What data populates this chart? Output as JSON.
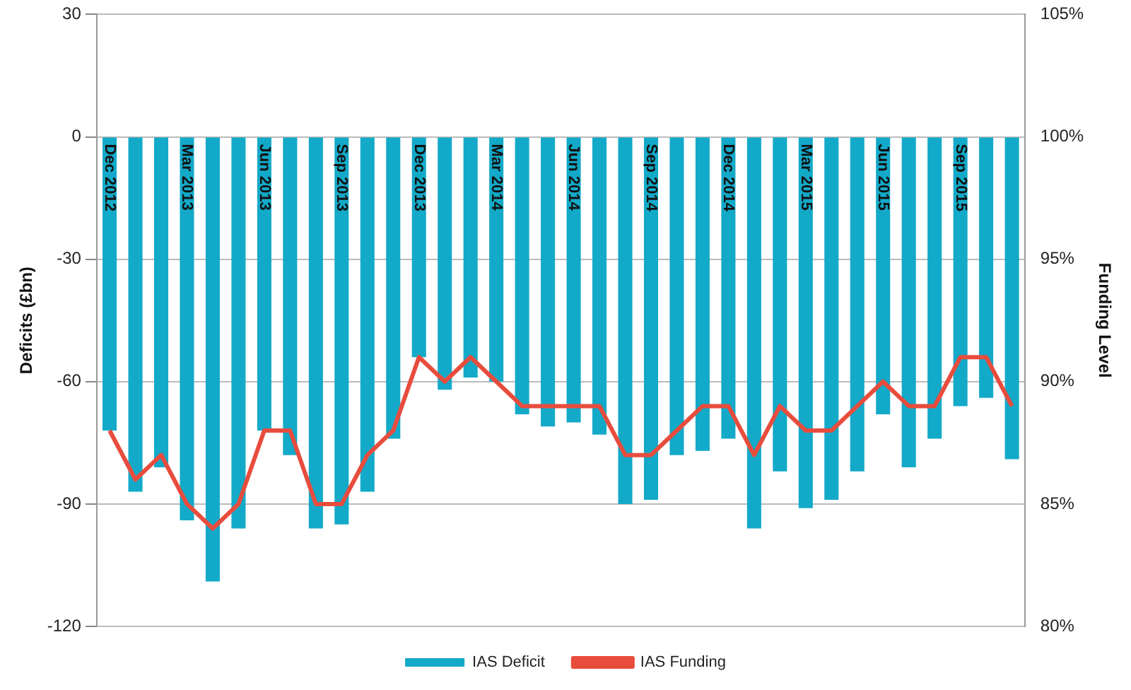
{
  "chart_data": {
    "type": "bar",
    "ylabel": "Deficits (£bn)",
    "y2label": "Funding Level",
    "categories": [
      "Dec 2012",
      null,
      null,
      "Mar 2013",
      null,
      null,
      "Jun 2013",
      null,
      null,
      "Sep 2013",
      null,
      null,
      "Dec 2013",
      null,
      null,
      "Mar 2014",
      null,
      null,
      "Jun 2014",
      null,
      null,
      "Sep 2014",
      null,
      null,
      "Dec 2014",
      null,
      null,
      "Mar 2015",
      null,
      null,
      "Jun 2015",
      null,
      null,
      "Sep 2015",
      null,
      null
    ],
    "series": [
      {
        "name": "IAS Deficit",
        "color": "#13a9c8",
        "values": [
          -72,
          -87,
          -81,
          -94,
          -109,
          -96,
          -72,
          -78,
          -96,
          -95,
          -87,
          -74,
          -54,
          -62,
          -59,
          -60,
          -68,
          -71,
          -70,
          -73,
          -90,
          -89,
          -78,
          -77,
          -74,
          -96,
          -82,
          -91,
          -89,
          -82,
          -68,
          -81,
          -74,
          -66,
          -64,
          -79
        ]
      },
      {
        "name": "IAS Funding",
        "type": "line",
        "axis": "y2",
        "color": "#e84c3d",
        "values": [
          88,
          86,
          87,
          85,
          84,
          85,
          88,
          88,
          85,
          85,
          87,
          88,
          91,
          90,
          91,
          90,
          89,
          89,
          89,
          89,
          87,
          87,
          88,
          89,
          89,
          87,
          89,
          88,
          88,
          89,
          90,
          89,
          89,
          91,
          91,
          89
        ]
      }
    ],
    "ylim": [
      -120,
      30
    ],
    "yticks": [
      -120,
      -90,
      -60,
      -30,
      0,
      30
    ],
    "y2lim": [
      80,
      105
    ],
    "y2ticks": [
      {
        "value": 80,
        "label": "80%"
      },
      {
        "value": 85,
        "label": "85%"
      },
      {
        "value": 90,
        "label": "90%"
      },
      {
        "value": 95,
        "label": "95%"
      },
      {
        "value": 100,
        "label": "100%"
      },
      {
        "value": 105,
        "label": "105%"
      }
    ],
    "grid": "y",
    "legend": "bottom",
    "marker": "none",
    "line_style": "solid"
  }
}
